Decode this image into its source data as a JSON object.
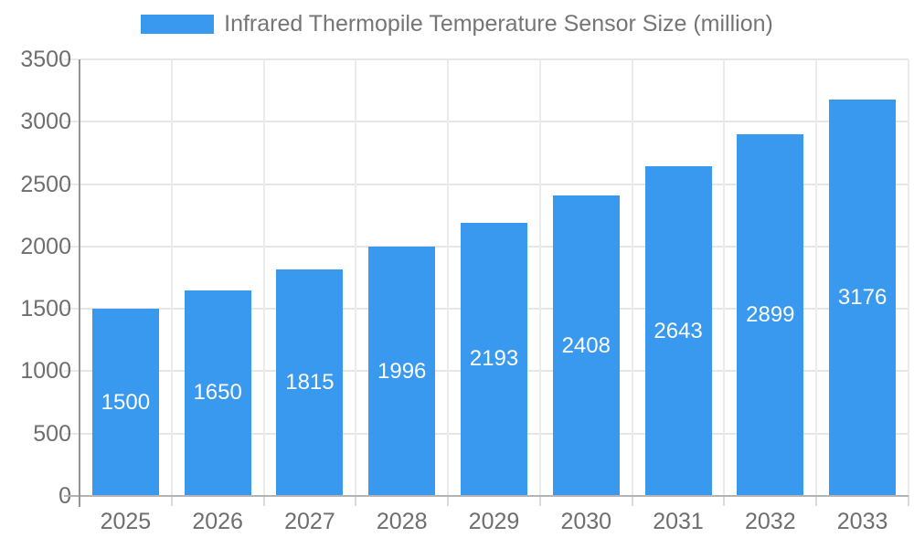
{
  "legend": {
    "label": "Infrared Thermopile Temperature Sensor Size (million)"
  },
  "chart_data": {
    "type": "bar",
    "title": "Infrared Thermopile Temperature Sensor Size (million)",
    "categories": [
      "2025",
      "2026",
      "2027",
      "2028",
      "2029",
      "2030",
      "2031",
      "2032",
      "2033"
    ],
    "values": [
      1500,
      1650,
      1815,
      1996,
      2193,
      2408,
      2643,
      2899,
      3176
    ],
    "series_name": "Infrared Thermopile Temperature Sensor Size (million)",
    "xlabel": "",
    "ylabel": "",
    "ylim": [
      0,
      3500
    ],
    "yticks": [
      0,
      500,
      1000,
      1500,
      2000,
      2500,
      3000,
      3500
    ],
    "grid": true,
    "legend_position": "top",
    "value_labels": "inside-bars-centered"
  },
  "colors": {
    "bar": "#3899EE",
    "gridline_h": "#e6e6e6",
    "gridline_v": "#ebebeb",
    "y_axis_line": "#949494",
    "baseline": "#b3b3b3",
    "tick_label": "#6e6e6e",
    "legend_text": "#757575",
    "bar_value_text": "#ffffff",
    "background": "#ffffff"
  }
}
